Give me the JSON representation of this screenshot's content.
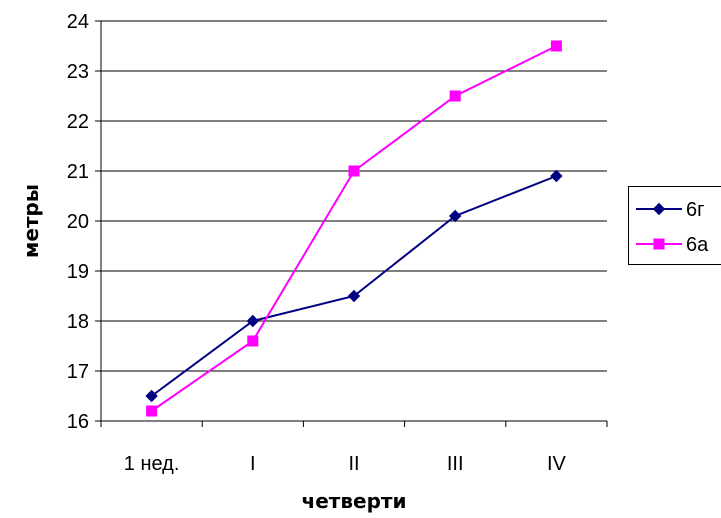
{
  "chart_data": {
    "type": "line",
    "title": "",
    "xlabel": "четверти",
    "ylabel": "метры",
    "categories": [
      "1 нед.",
      "I",
      "II",
      "III",
      "IV"
    ],
    "ylim": [
      16,
      24
    ],
    "yticks": [
      "16",
      "17",
      "18",
      "19",
      "20",
      "21",
      "22",
      "23",
      "24"
    ],
    "grid": "horizontal",
    "legend": "right",
    "series": [
      {
        "name": "6г",
        "values": [
          16.5,
          18.0,
          18.5,
          20.1,
          20.9
        ],
        "color": "#000080",
        "marker": "diamond"
      },
      {
        "name": "6а",
        "values": [
          16.2,
          17.6,
          21.0,
          22.5,
          23.5
        ],
        "color": "#FF00FF",
        "marker": "square"
      }
    ]
  }
}
